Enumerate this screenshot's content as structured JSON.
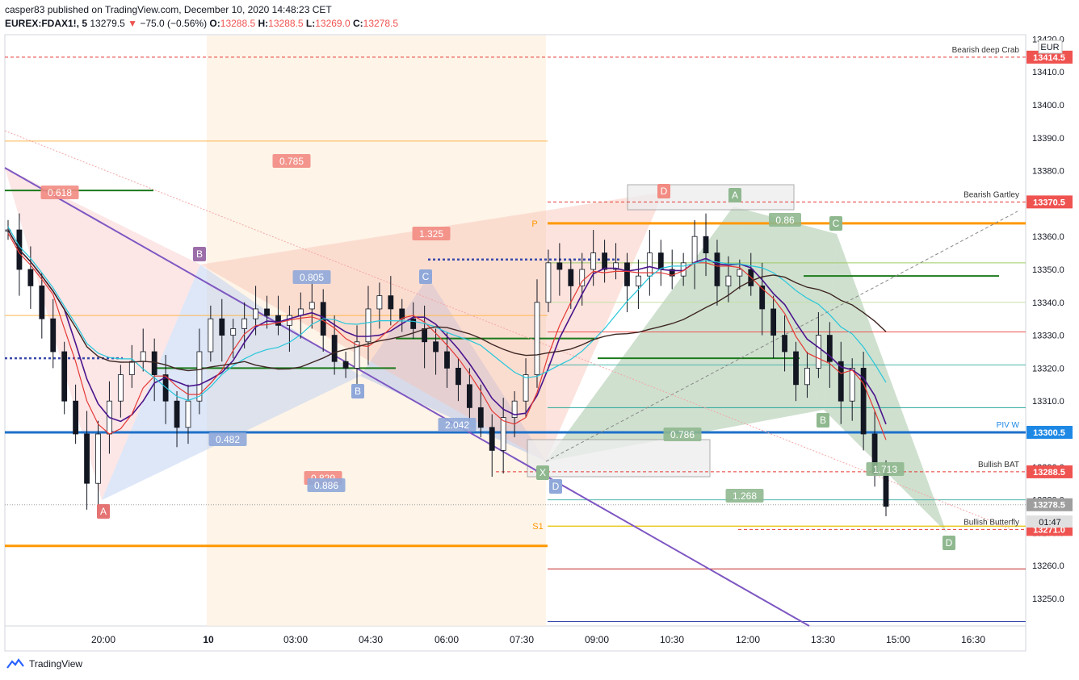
{
  "header": {
    "published_line": "casper83 published on TradingView.com, December 10, 2020 14:48:23 CET",
    "symbol": "EUREX:FDAX1!, 5",
    "last": "13279.5",
    "change": "−75.0 (−0.56%)",
    "o_label": "O:",
    "o": "13288.5",
    "h_label": "H:",
    "h": "13288.5",
    "l_label": "L:",
    "l": "13269.0",
    "c_label": "C:",
    "c": "13278.5"
  },
  "footer": {
    "brand": "TradingView"
  },
  "currency": "EUR",
  "countdown": "01:47",
  "colors": {
    "candle": "#131722",
    "resistance": "#ef5350",
    "support": "#1e88e5",
    "pivot": "#ff9800",
    "green": "#1b7a1b",
    "purple": "#7e57c2"
  },
  "chart_data": {
    "type": "candlestick",
    "ylim": [
      13240,
      13422
    ],
    "y_ticks": [
      13250,
      13260,
      13270,
      13280,
      13290,
      13300,
      13310,
      13320,
      13330,
      13340,
      13350,
      13360,
      13370,
      13380,
      13390,
      13400,
      13410,
      13420
    ],
    "y_tick_labels": [
      "13250.0",
      "13260.0",
      "13270.0",
      "13280.0",
      "13290.0",
      "13300.0",
      "13310.0",
      "13320.0",
      "13330.0",
      "13340.0",
      "13350.0",
      "13360.0",
      "13370.0",
      "13380.0",
      "13390.0",
      "13400.0",
      "13410.0",
      "13420.0"
    ],
    "x_labels": [
      "20:00",
      "10",
      "03:00",
      "04:30",
      "06:00",
      "07:30",
      "09:00",
      "10:30",
      "12:00",
      "13:30",
      "15:00",
      "16:30"
    ],
    "price_badges": [
      {
        "label": "13414.5",
        "value": 13414.5,
        "color": "#ef5350"
      },
      {
        "label": "13370.5",
        "value": 13370.5,
        "color": "#ef5350"
      },
      {
        "label": "13300.5",
        "value": 13300.5,
        "color": "#1e88e5"
      },
      {
        "label": "13288.5",
        "value": 13288.5,
        "color": "#ef5350"
      },
      {
        "label": "13278.5",
        "value": 13278.5,
        "color": "#9e9e9e"
      },
      {
        "label": "13271.0",
        "value": 13271.0,
        "color": "#ef5350"
      }
    ],
    "line_labels": [
      {
        "text": "Bearish deep Crab",
        "value": 13414.5
      },
      {
        "text": "Bearish Gartley",
        "value": 13370.5
      },
      {
        "text": "PIV W",
        "value": 13300.5
      },
      {
        "text": "Bullish BAT",
        "value": 13288.5
      },
      {
        "text": "Bullish Butterfly",
        "value": 13271.0
      }
    ],
    "pivot_markers": [
      {
        "text": "P",
        "value": 13364
      },
      {
        "text": "S1",
        "value": 13272
      }
    ],
    "ratio_labels": [
      {
        "text": "0.785",
        "color": "#f28b82"
      },
      {
        "text": "0.618",
        "color": "#f28b82"
      },
      {
        "text": "1.325",
        "color": "#f28b82"
      },
      {
        "text": "0.805",
        "color": "#8fa8d9"
      },
      {
        "text": "0.482",
        "color": "#8fa8d9"
      },
      {
        "text": "2.042",
        "color": "#8fa8d9"
      },
      {
        "text": "0.829",
        "color": "#f28b82"
      },
      {
        "text": "0.886",
        "color": "#8fa8d9"
      },
      {
        "text": "0.786",
        "color": "#8fb88f"
      },
      {
        "text": "0.86",
        "color": "#8fb88f"
      },
      {
        "text": "1.268",
        "color": "#8fb88f"
      },
      {
        "text": "1.713",
        "color": "#8fb88f"
      }
    ],
    "pattern_points": [
      {
        "text": "B",
        "color": "#9c6ea9"
      },
      {
        "text": "A",
        "color": "#e57373"
      },
      {
        "text": "C",
        "color": "#8fa8d9"
      },
      {
        "text": "B",
        "color": "#8fa8d9"
      },
      {
        "text": "X",
        "color": "#8fb88f"
      },
      {
        "text": "D",
        "color": "#8fa8d9"
      },
      {
        "text": "D",
        "color": "#f28b82"
      },
      {
        "text": "A",
        "color": "#8fb88f"
      },
      {
        "text": "C",
        "color": "#8fb88f"
      },
      {
        "text": "B",
        "color": "#8fb88f"
      },
      {
        "text": "D",
        "color": "#8fb88f"
      }
    ],
    "close_series": [
      13362,
      13350,
      13345,
      13335,
      13325,
      13310,
      13300,
      13285,
      13300,
      13310,
      13318,
      13322,
      13325,
      13318,
      13310,
      13302,
      13310,
      13325,
      13335,
      13330,
      13332,
      13335,
      13338,
      13336,
      13333,
      13336,
      13338,
      13340,
      13330,
      13322,
      13320,
      13328,
      13338,
      13342,
      13338,
      13335,
      13332,
      13328,
      13325,
      13320,
      13315,
      13308,
      13302,
      13295,
      13305,
      13310,
      13318,
      13340,
      13352,
      13350,
      13345,
      13350,
      13355,
      13350,
      13352,
      13345,
      13348,
      13355,
      13350,
      13348,
      13352,
      13360,
      13355,
      13345,
      13348,
      13350,
      13345,
      13338,
      13330,
      13325,
      13315,
      13320,
      13330,
      13322,
      13310,
      13320,
      13300,
      13288,
      13278
    ]
  }
}
